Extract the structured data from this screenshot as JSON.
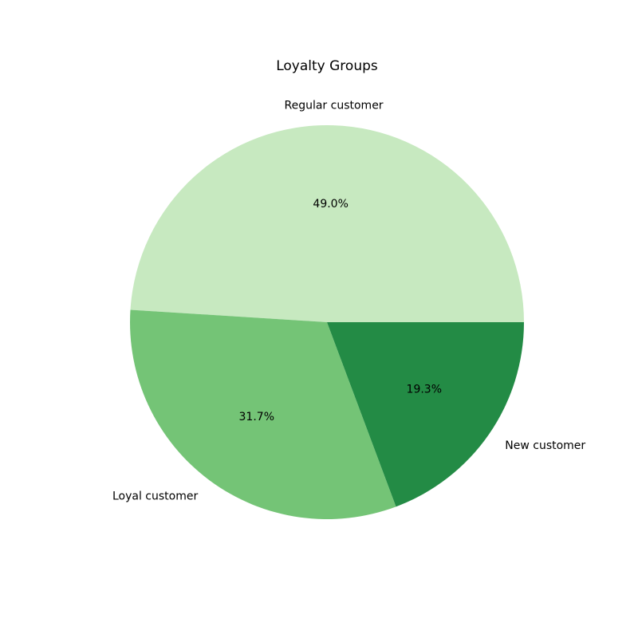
{
  "chart_data": {
    "type": "pie",
    "title": "Loyalty Groups",
    "slices": [
      {
        "label": "Regular customer",
        "value": 49.0,
        "pct_label": "49.0%",
        "color": "#c7e9c0"
      },
      {
        "label": "Loyal customer",
        "value": 31.7,
        "pct_label": "31.7%",
        "color": "#74c476"
      },
      {
        "label": "New customer",
        "value": 19.3,
        "pct_label": "19.3%",
        "color": "#238b45"
      }
    ]
  }
}
